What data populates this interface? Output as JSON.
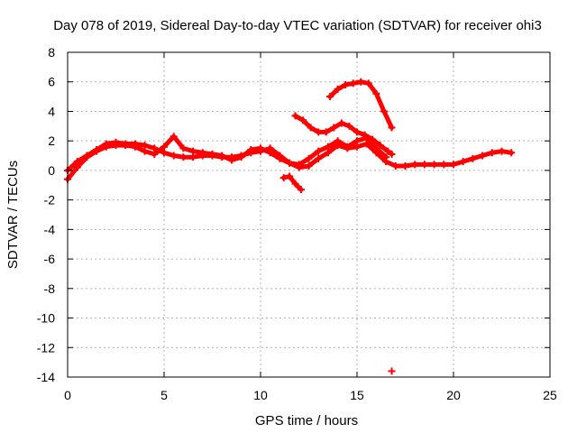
{
  "chart_data": {
    "type": "scatter",
    "title": "Day 078 of 2019, Sidereal Day-to-day VTEC variation (SDTVAR) for receiver ohi3",
    "xlabel": "GPS time / hours",
    "ylabel": "SDTVAR / TECUs",
    "xlim": [
      0,
      25
    ],
    "ylim": [
      -14,
      8
    ],
    "x_ticks": [
      0,
      5,
      10,
      15,
      20,
      25
    ],
    "y_ticks": [
      -14,
      -12,
      -10,
      -8,
      -6,
      -4,
      -2,
      0,
      2,
      4,
      6,
      8
    ],
    "grid": true,
    "legend": "none",
    "series": [
      {
        "name": "track-main-low",
        "color": "#ff0000",
        "x": [
          0,
          0.5,
          1,
          1.5,
          2,
          2.5,
          3,
          3.5,
          4,
          4.5,
          5,
          5.5,
          6,
          6.5,
          7,
          7.5,
          8,
          8.5,
          9,
          9.5,
          10,
          10.5,
          11,
          11.5,
          12,
          12.5,
          13,
          13.5,
          14,
          14.5,
          15,
          15.5,
          16,
          16.5,
          17,
          17.5,
          18,
          18.5,
          19,
          19.5,
          20,
          20.5,
          21,
          21.5,
          22,
          22.5,
          23
        ],
        "y": [
          0,
          0.6,
          1.0,
          1.4,
          1.8,
          1.9,
          1.8,
          1.8,
          1.7,
          1.5,
          1.2,
          1.0,
          0.9,
          0.9,
          1.0,
          1.0,
          0.9,
          0.9,
          1.0,
          1.2,
          1.3,
          1.5,
          1.0,
          0.5,
          0.2,
          0.3,
          0.8,
          1.2,
          1.7,
          1.5,
          1.6,
          1.8,
          1.2,
          0.6,
          0.3,
          0.3,
          0.4,
          0.4,
          0.4,
          0.4,
          0.4,
          0.6,
          0.8,
          1.0,
          1.2,
          1.3,
          1.2
        ]
      },
      {
        "name": "track-main-high",
        "color": "#ff0000",
        "x": [
          0,
          0.5,
          1,
          1.5,
          2,
          2.5,
          3,
          3.5,
          4,
          4.5,
          5,
          5.5,
          6,
          6.5,
          7,
          7.5,
          8,
          8.5,
          9,
          9.5,
          10,
          10.5,
          11,
          11.5,
          12,
          12.5,
          13,
          13.5,
          14,
          14.5,
          15,
          15.5,
          16,
          16.5
        ],
        "y": [
          -0.6,
          0.2,
          0.9,
          1.3,
          1.6,
          1.7,
          1.7,
          1.6,
          1.3,
          1.1,
          1.6,
          2.3,
          1.5,
          1.3,
          1.2,
          1.1,
          1.0,
          0.7,
          0.9,
          1.4,
          1.5,
          1.2,
          0.8,
          0.5,
          0.4,
          0.8,
          1.3,
          1.6,
          2.0,
          1.6,
          2.0,
          2.2,
          1.5,
          0.9
        ]
      },
      {
        "name": "track-upper-arc",
        "color": "#ff0000",
        "x": [
          11.8,
          12.2,
          12.6,
          13.0,
          13.4,
          13.8,
          14.2,
          14.6,
          15.0,
          15.4,
          15.8,
          16.2,
          16.6,
          16.8
        ],
        "y": [
          3.7,
          3.4,
          2.9,
          2.6,
          2.6,
          2.9,
          3.2,
          3.0,
          2.6,
          2.4,
          2.1,
          1.7,
          1.3,
          1.1
        ]
      },
      {
        "name": "track-peak",
        "color": "#ff0000",
        "x": [
          13.6,
          14.0,
          14.4,
          14.8,
          15.2,
          15.6,
          16.0,
          16.4,
          16.8
        ],
        "y": [
          5.0,
          5.5,
          5.8,
          5.9,
          6.0,
          5.9,
          5.2,
          4.0,
          2.9
        ]
      },
      {
        "name": "track-dip-segment",
        "color": "#ff0000",
        "x": [
          11.2,
          11.5,
          11.8,
          12.1
        ],
        "y": [
          -0.5,
          -0.4,
          -0.9,
          -1.3
        ]
      },
      {
        "name": "outlier-point",
        "color": "#ff0000",
        "x": [
          16.8
        ],
        "y": [
          -13.6
        ]
      }
    ]
  }
}
